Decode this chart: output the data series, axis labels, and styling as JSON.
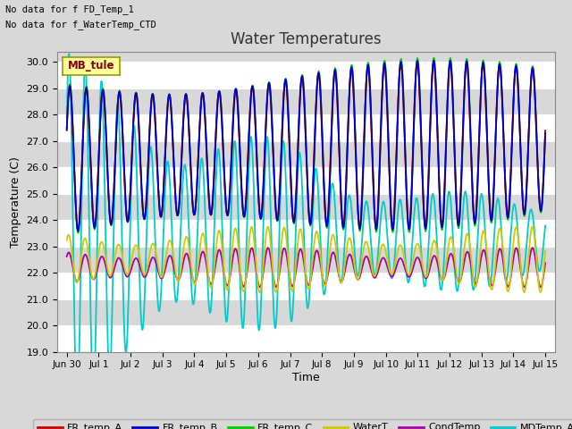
{
  "title": "Water Temperatures",
  "xlabel": "Time",
  "ylabel": "Temperature (C)",
  "ylim": [
    19.0,
    30.4
  ],
  "yticks": [
    19.0,
    20.0,
    21.0,
    22.0,
    23.0,
    24.0,
    25.0,
    26.0,
    27.0,
    28.0,
    29.0,
    30.0
  ],
  "xtick_labels": [
    "Jun 30",
    "Jul 1",
    "Jul 2",
    "Jul 3",
    "Jul 4",
    "Jul 5",
    "Jul 6",
    "Jul 7",
    "Jul 8",
    "Jul 9",
    "Jul 10",
    "Jul 11",
    "Jul 12",
    "Jul 13",
    "Jul 14",
    "Jul 15"
  ],
  "annotation1": "No data for f FD_Temp_1",
  "annotation2": "No data for f_WaterTemp_CTD",
  "legend_box_label": "MB_tule",
  "legend_entries": [
    "FR_temp_A",
    "FR_temp_B",
    "FR_temp_C",
    "WaterT",
    "CondTemp",
    "MDTemp_A"
  ],
  "colors": {
    "FR_temp_A": "#cc0000",
    "FR_temp_B": "#0000cc",
    "FR_temp_C": "#00cc00",
    "WaterT": "#cccc00",
    "CondTemp": "#aa00aa",
    "MDTemp_A": "#00cccc"
  },
  "background_color": "#d8d8d8",
  "plot_bg_color": "#d8d8d8",
  "figsize": [
    6.4,
    4.8
  ],
  "dpi": 100
}
